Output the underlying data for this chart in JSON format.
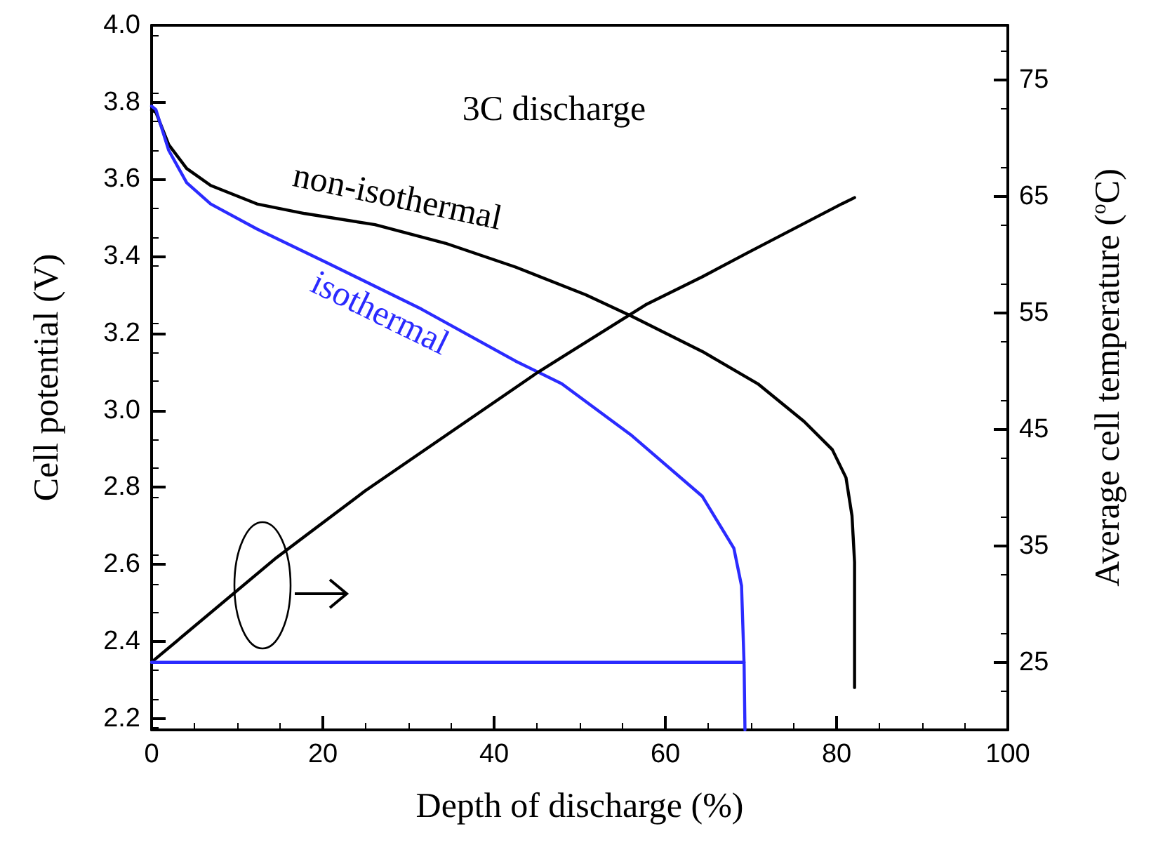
{
  "chart_data": {
    "type": "line",
    "xlabel": "Depth of discharge (%)",
    "ylabel": "Cell potential (V)",
    "y2label": "Average cell temperature ($^{o}$C)",
    "annotations": [
      "3C discharge"
    ],
    "xlim": [
      0,
      100
    ],
    "xticks": [
      0,
      20,
      40,
      60,
      80,
      100
    ],
    "ylim": [
      2.17,
      4.0
    ],
    "yticks": [
      2.2,
      2.4,
      2.6,
      2.8,
      {
        "value": 3,
        "label": "3.0"
      },
      3.2,
      3.4,
      3.6,
      3.8,
      {
        "value": 4,
        "label": "4.0"
      }
    ],
    "y2lim": [
      19.2,
      79.7
    ],
    "y2ticks": [
      25,
      35,
      45,
      55,
      65,
      75
    ],
    "grid": false,
    "legend": false,
    "marker": "none",
    "line_style": "solid",
    "series": [
      {
        "name": "non-isothermal",
        "color": "#000000",
        "x": [
          0,
          0.5,
          2.0,
          4.1,
          6.9,
          12.3,
          17.9,
          26.1,
          34.3,
          42.5,
          50.7,
          56.1,
          64.3,
          70.8,
          76.2,
          79.5,
          81.1,
          81.8,
          82.1,
          82.1
        ],
        "values": [
          3.78,
          3.774,
          3.69,
          3.628,
          3.584,
          3.536,
          3.511,
          3.482,
          3.434,
          3.372,
          3.3,
          3.244,
          3.153,
          3.069,
          2.971,
          2.898,
          2.825,
          2.726,
          2.606,
          2.28
        ]
      },
      {
        "name": "isothermal",
        "color": "#2b2bff",
        "x": [
          0,
          0.5,
          2.0,
          4.1,
          6.9,
          12.3,
          20.5,
          31.5,
          42.5,
          47.9,
          56.1,
          64.3,
          68.0,
          68.9,
          69.2,
          69.3
        ],
        "values": [
          3.79,
          3.781,
          3.675,
          3.591,
          3.536,
          3.471,
          3.383,
          3.263,
          3.128,
          3.069,
          2.934,
          2.777,
          2.642,
          2.544,
          2.339,
          2.17
        ]
      },
      {
        "color": "#000000",
        "axis": "y2",
        "x": [
          0.3,
          14.6,
          24.9,
          45.1,
          57.7,
          64.3,
          69.7,
          80.7,
          82.1
        ],
        "values": [
          25.2,
          34.0,
          39.7,
          49.9,
          55.7,
          58.1,
          60.2,
          64.4,
          64.9
        ]
      },
      {
        "color": "#2b2bff",
        "axis": "y2",
        "x": [
          0,
          69.2
        ],
        "values": [
          25,
          25
        ]
      }
    ]
  }
}
